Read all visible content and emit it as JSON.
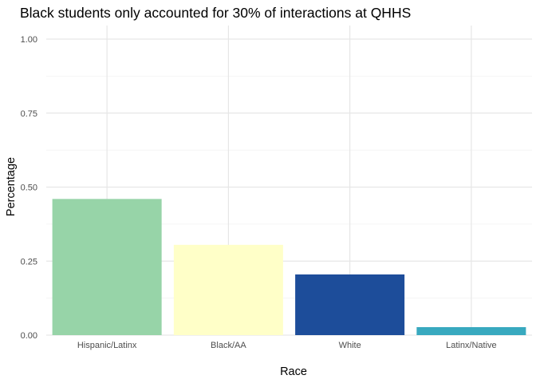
{
  "chart_data": {
    "type": "bar",
    "title": "Black students only accounted for 30% of interactions at QHHS",
    "xlabel": "Race",
    "ylabel": "Percentage",
    "categories": [
      "Hispanic/Latinx",
      "Black/AA",
      "White",
      "Latinx/Native"
    ],
    "values": [
      0.46,
      0.305,
      0.205,
      0.027
    ],
    "colors": [
      "#97d4a8",
      "#ffffc8",
      "#1d4d9a",
      "#38a9bf"
    ],
    "ylim": [
      0,
      1.0
    ],
    "yticks": [
      "0.00",
      "0.25",
      "0.50",
      "0.75",
      "1.00"
    ],
    "grid": true,
    "legend": "none"
  }
}
